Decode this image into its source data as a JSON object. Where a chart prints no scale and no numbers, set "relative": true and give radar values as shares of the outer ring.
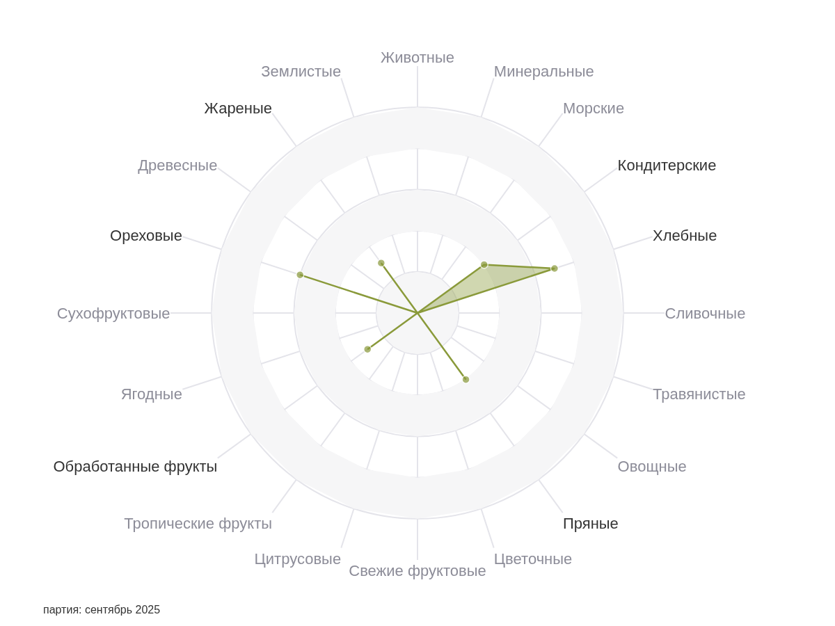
{
  "chart_data": {
    "type": "radar",
    "relative": true,
    "categories": [
      "Животные",
      "Минеральные",
      "Морские",
      "Кондитерские",
      "Хлебные",
      "Сливочные",
      "Травянистые",
      "Овощные",
      "Пряные",
      "Цветочные",
      "Свежие фруктовые",
      "Цитрусовые",
      "Тропические фрукты",
      "Обработанные фрукты",
      "Ягодные",
      "Сухофруктовые",
      "Ореховые",
      "Древесные",
      "Жареные",
      "Землистые"
    ],
    "series": [
      {
        "color": "#8a9a3a",
        "values": [
          0,
          0,
          0,
          0.4,
          0.7,
          0,
          0,
          0,
          0.4,
          0,
          0,
          0,
          0,
          0.3,
          0,
          0,
          0.6,
          0,
          0.3,
          0
        ]
      }
    ],
    "grid": true,
    "marker": "circle",
    "annotations": [
      "партия: сентябрь 2025"
    ]
  }
}
